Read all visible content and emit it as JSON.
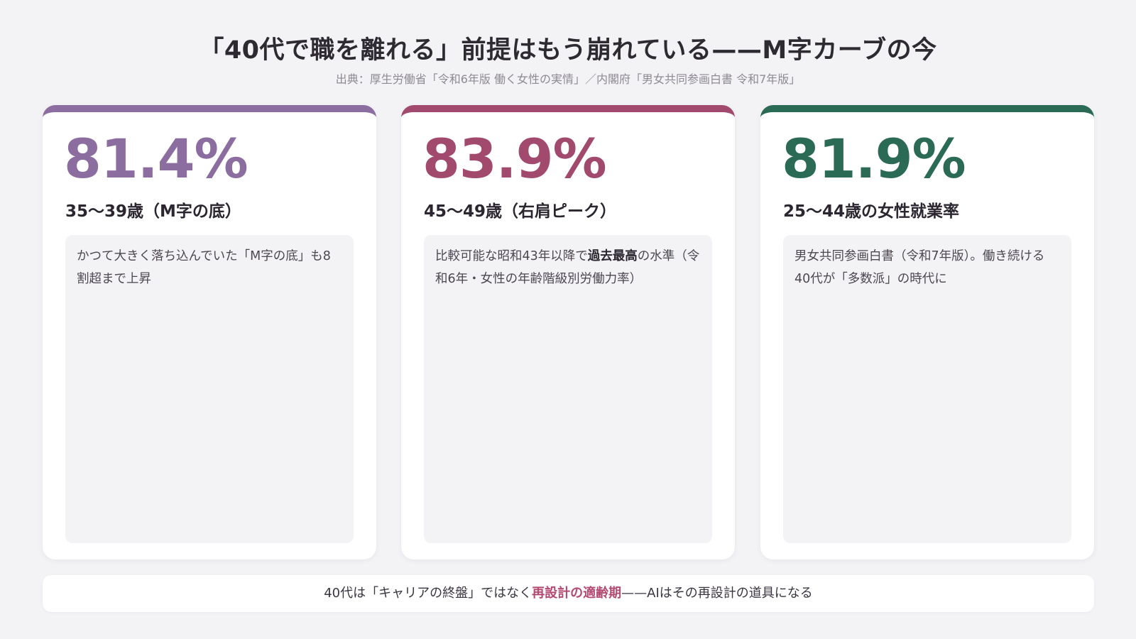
{
  "header": {
    "title": "「40代で職を離れる」前提はもう崩れている——M字カーブの今",
    "source": "出典：厚生労働省「令和6年版 働く女性の実情」／内閣府「男女共同参画白書 令和7年版」"
  },
  "cards": [
    {
      "accent": "#8c6d9f",
      "stat": "81.4%",
      "label": "35〜39歳（M字の底）",
      "desc_before": "かつて大きく落ち込んでいた「M字の底」も8割超まで上昇",
      "desc_bold": "",
      "desc_after": ""
    },
    {
      "accent": "#a24a6e",
      "stat": "83.9%",
      "label": "45〜49歳（右肩ピーク）",
      "desc_before": "比較可能な昭和43年以降で",
      "desc_bold": "過去最高",
      "desc_after": "の水準（令和6年・女性の年齢階級別労働力率）"
    },
    {
      "accent": "#2b6b55",
      "stat": "81.9%",
      "label": "25〜44歳の女性就業率",
      "desc_before": "男女共同参画白書（令和7年版）。働き続ける40代が「多数派」の時代に",
      "desc_bold": "",
      "desc_after": ""
    }
  ],
  "footer": {
    "before": "40代は「キャリアの終盤」ではなく",
    "highlight": "再設計の適齢期",
    "after": "——AIはその再設計の道具になる",
    "highlight_color": "#b24a72"
  }
}
